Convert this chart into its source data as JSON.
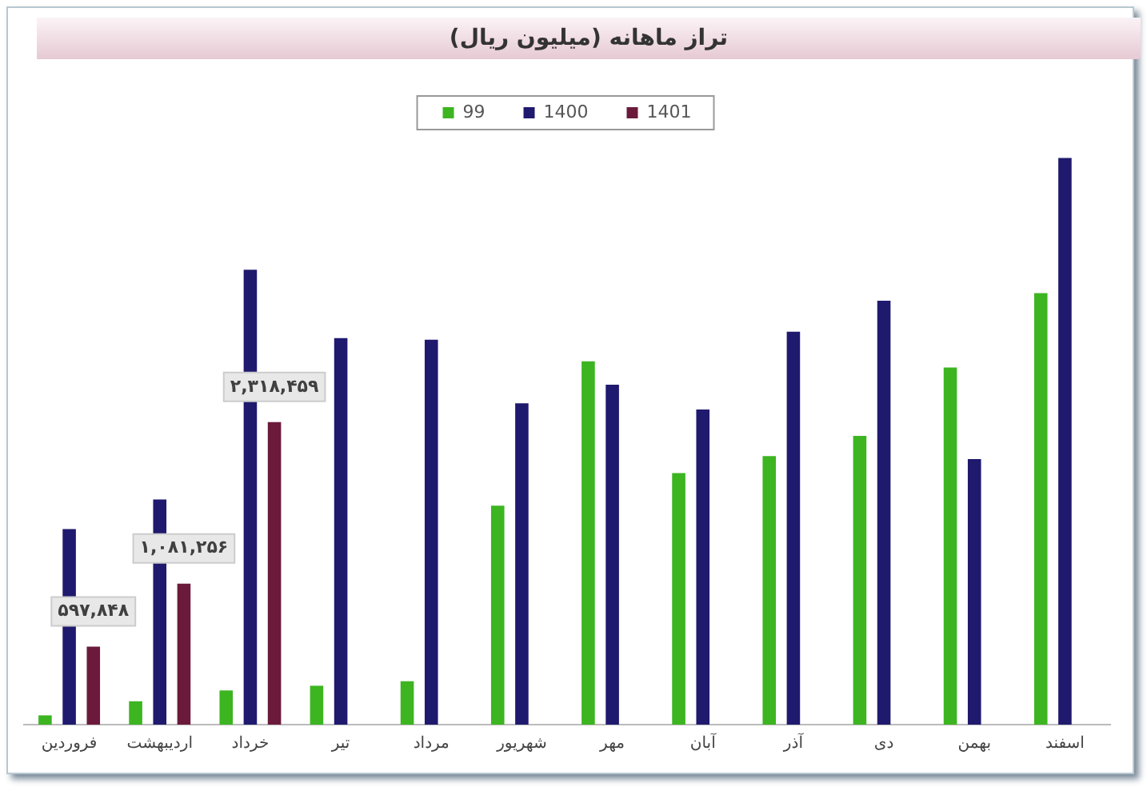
{
  "chart_data": {
    "type": "bar",
    "title": "تراز ماهانه (میلیون ریال)",
    "categories": [
      "فروردین",
      "اردیبهشت",
      "خرداد",
      "تیر",
      "مرداد",
      "شهریور",
      "مهر",
      "آبان",
      "آذر",
      "دی",
      "بهمن",
      "اسفند"
    ],
    "series": [
      {
        "name": "99",
        "color": "#3cb521",
        "values": [
          71000,
          179000,
          262000,
          298000,
          333000,
          1678000,
          2785000,
          1928000,
          2059000,
          2213000,
          2737000,
          3308000
        ]
      },
      {
        "name": "1400",
        "color": "#1f1a6e",
        "values": [
          1499000,
          1726000,
          3487000,
          2963000,
          2951000,
          2463000,
          2606000,
          2416000,
          3011000,
          3249000,
          2035000,
          4344000
        ]
      },
      {
        "name": "1401",
        "color": "#6b1a3c",
        "values": [
          597848,
          1081256,
          2318459,
          null,
          null,
          null,
          null,
          null,
          null,
          null,
          null,
          null
        ],
        "value_labels": [
          "۵۹۷,۸۴۸",
          "۱,۰۸۱,۲۵۶",
          "۲,۳۱۸,۴۵۹",
          null,
          null,
          null,
          null,
          null,
          null,
          null,
          null,
          null
        ]
      }
    ],
    "legend": "top",
    "grid": false,
    "tick_labels": "x"
  }
}
